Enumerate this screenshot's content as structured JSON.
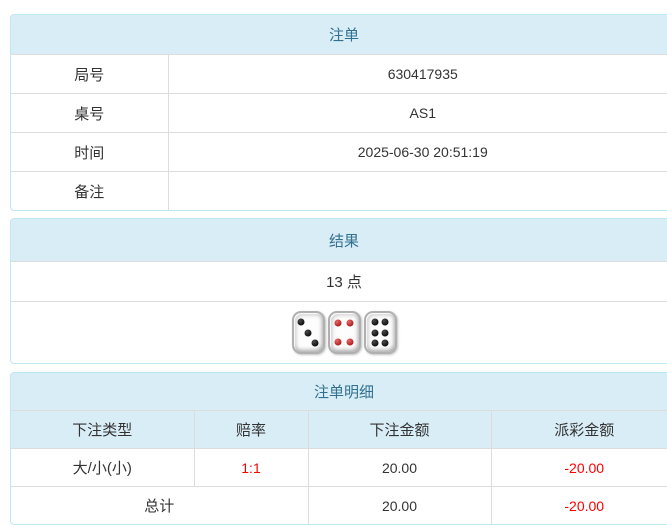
{
  "colors": {
    "header_bg": "#d9edf7",
    "header_text": "#31708f",
    "panel_border": "#bce8f1",
    "inner_border": "#dddddd",
    "body_text": "#333333",
    "negative_red": "#ff0000"
  },
  "bet_info": {
    "title": "注单",
    "rows": [
      {
        "label": "局号",
        "value": "630417935"
      },
      {
        "label": "桌号",
        "value": "AS1"
      },
      {
        "label": "时间",
        "value": "2025-06-30 20:51:19"
      },
      {
        "label": "备注",
        "value": ""
      }
    ]
  },
  "result": {
    "title": "结果",
    "points": "13 点",
    "dice": [
      {
        "value": 3,
        "color": "black"
      },
      {
        "value": 4,
        "color": "red"
      },
      {
        "value": 6,
        "color": "black"
      }
    ]
  },
  "bet_detail": {
    "title": "注单明细",
    "columns": [
      "下注类型",
      "赔率",
      "下注金额",
      "派彩金额"
    ],
    "rows": [
      {
        "type": "大/小(小)",
        "odds": "1:1",
        "bet": "20.00",
        "payout": "-20.00"
      }
    ],
    "total": {
      "label": "总计",
      "bet": "20.00",
      "payout": "-20.00"
    }
  }
}
